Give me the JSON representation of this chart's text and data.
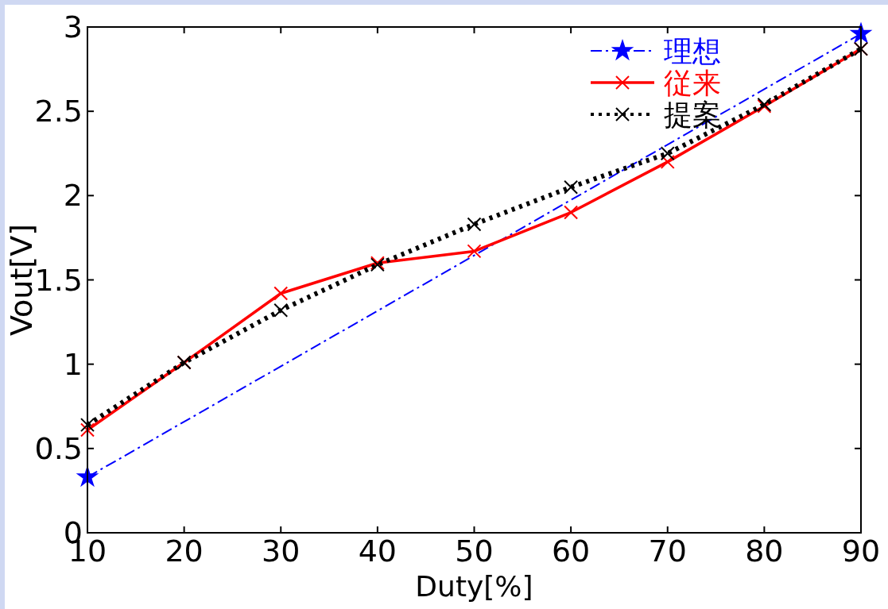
{
  "chart_data": {
    "type": "line",
    "xlabel": "Duty[%]",
    "ylabel": "Vout[V]",
    "x": [
      10,
      20,
      30,
      40,
      50,
      60,
      70,
      80,
      90
    ],
    "series": [
      {
        "name": "理想",
        "color": "#0000ff",
        "x": [
          10,
          90
        ],
        "values": [
          0.33,
          2.96
        ],
        "line_style": "dashed",
        "marker": "star"
      },
      {
        "name": "従来",
        "color": "#ff0000",
        "values": [
          0.61,
          1.01,
          1.42,
          1.6,
          1.67,
          1.9,
          2.2,
          2.53,
          2.87
        ],
        "line_style": "solid",
        "marker": "cross"
      },
      {
        "name": "提案",
        "color": "#000000",
        "values": [
          0.64,
          1.01,
          1.32,
          1.59,
          1.83,
          2.05,
          2.25,
          2.54,
          2.87
        ],
        "line_style": "dotted",
        "marker": "cross"
      }
    ],
    "xlim": [
      10,
      90
    ],
    "xticks": [
      10,
      20,
      30,
      40,
      50,
      60,
      70,
      80,
      90
    ],
    "ylim": [
      0,
      3
    ],
    "yticks": [
      0,
      0.5,
      1,
      1.5,
      2,
      2.5,
      3
    ],
    "grid": false,
    "legend": "top right"
  }
}
